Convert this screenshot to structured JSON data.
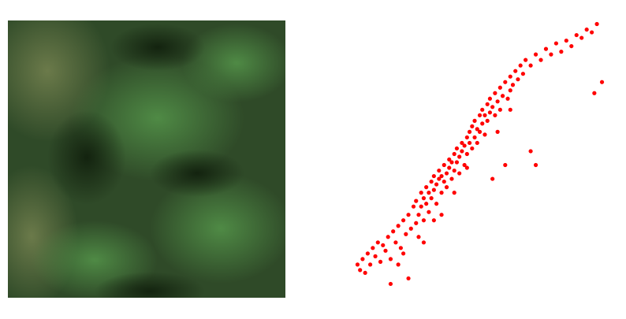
{
  "chart_data": {
    "type": "scatter",
    "color": "#ff0000",
    "xlim": [
      0,
      100
    ],
    "ylim": [
      0,
      100
    ],
    "x": [
      2,
      3,
      4,
      5,
      6,
      7,
      8,
      9,
      10,
      11,
      12,
      13,
      14,
      15,
      15,
      16,
      17,
      18,
      19,
      20,
      21,
      22,
      22,
      23,
      24,
      25,
      25,
      26,
      27,
      27,
      28,
      28,
      29,
      29,
      30,
      30,
      31,
      31,
      32,
      32,
      33,
      33,
      34,
      34,
      35,
      35,
      36,
      36,
      37,
      37,
      38,
      38,
      39,
      39,
      40,
      40,
      41,
      41,
      42,
      42,
      43,
      43,
      44,
      44,
      45,
      45,
      46,
      46,
      47,
      47,
      48,
      48,
      49,
      49,
      50,
      50,
      51,
      51,
      52,
      52,
      53,
      53,
      54,
      54,
      55,
      55,
      56,
      56,
      57,
      58,
      58,
      59,
      60,
      60,
      61,
      62,
      62,
      63,
      64,
      65,
      66,
      67,
      68,
      70,
      70,
      72,
      72,
      74,
      76,
      78,
      80,
      82,
      84,
      86,
      88,
      90,
      92,
      94,
      95,
      96,
      98,
      26,
      32,
      20,
      18,
      35,
      40,
      45,
      62,
      57,
      28
    ],
    "values": [
      12,
      10,
      14,
      9,
      16,
      12,
      18,
      15,
      20,
      13,
      19,
      17,
      22,
      5,
      14,
      24,
      20,
      26,
      18,
      28,
      23,
      7,
      30,
      25,
      33,
      27,
      35,
      30,
      38,
      33,
      28,
      36,
      40,
      34,
      31,
      38,
      42,
      36,
      44,
      39,
      34,
      41,
      46,
      43,
      38,
      44,
      48,
      42,
      45,
      40,
      50,
      47,
      43,
      49,
      52,
      46,
      49,
      54,
      51,
      45,
      56,
      53,
      48,
      55,
      58,
      52,
      56,
      60,
      54,
      62,
      58,
      64,
      61,
      56,
      66,
      60,
      63,
      68,
      59,
      66,
      70,
      64,
      67,
      72,
      43,
      69,
      74,
      66,
      71,
      76,
      68,
      73,
      48,
      78,
      72,
      80,
      75,
      77,
      82,
      79,
      84,
      81,
      86,
      53,
      84,
      48,
      88,
      86,
      90,
      88,
      92,
      89,
      93,
      91,
      95,
      94,
      97,
      96,
      74,
      99,
      78,
      22,
      28,
      16,
      12,
      30,
      38,
      47,
      68,
      60,
      20
    ]
  }
}
